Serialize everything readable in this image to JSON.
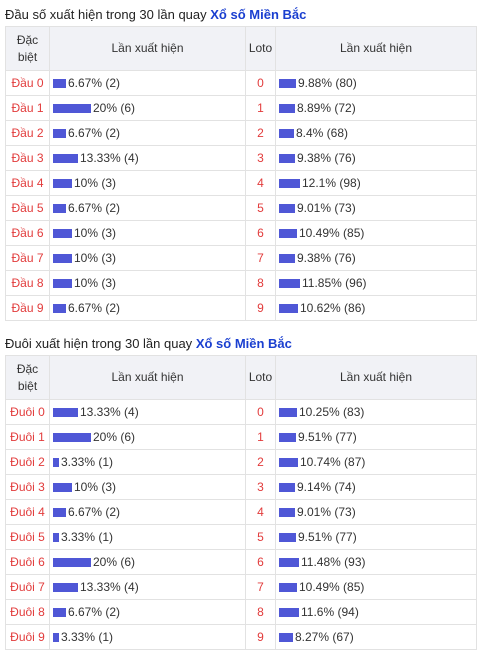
{
  "dau": {
    "title_prefix": "Đầu số xuất hiện trong 30 lần quay",
    "title_link": "Xổ số Miền Bắc",
    "headers": {
      "col1": "Đặc biệt",
      "col2": "Lần xuất hiện",
      "col3": "Loto",
      "col4": "Lần xuất hiện"
    },
    "rows": [
      {
        "label": "Đầu 0",
        "db_text": "6.67% (2)",
        "db_pct": 6.67,
        "loto": "0",
        "loto_text": "9.88% (80)",
        "loto_pct": 9.88
      },
      {
        "label": "Đầu 1",
        "db_text": "20% (6)",
        "db_pct": 20,
        "loto": "1",
        "loto_text": "8.89% (72)",
        "loto_pct": 8.89
      },
      {
        "label": "Đầu 2",
        "db_text": "6.67% (2)",
        "db_pct": 6.67,
        "loto": "2",
        "loto_text": "8.4% (68)",
        "loto_pct": 8.4
      },
      {
        "label": "Đầu 3",
        "db_text": "13.33% (4)",
        "db_pct": 13.33,
        "loto": "3",
        "loto_text": "9.38% (76)",
        "loto_pct": 9.38
      },
      {
        "label": "Đầu 4",
        "db_text": "10% (3)",
        "db_pct": 10,
        "loto": "4",
        "loto_text": "12.1% (98)",
        "loto_pct": 12.1
      },
      {
        "label": "Đầu 5",
        "db_text": "6.67% (2)",
        "db_pct": 6.67,
        "loto": "5",
        "loto_text": "9.01% (73)",
        "loto_pct": 9.01
      },
      {
        "label": "Đầu 6",
        "db_text": "10% (3)",
        "db_pct": 10,
        "loto": "6",
        "loto_text": "10.49% (85)",
        "loto_pct": 10.49
      },
      {
        "label": "Đầu 7",
        "db_text": "10% (3)",
        "db_pct": 10,
        "loto": "7",
        "loto_text": "9.38% (76)",
        "loto_pct": 9.38
      },
      {
        "label": "Đầu 8",
        "db_text": "10% (3)",
        "db_pct": 10,
        "loto": "8",
        "loto_text": "11.85% (96)",
        "loto_pct": 11.85
      },
      {
        "label": "Đầu 9",
        "db_text": "6.67% (2)",
        "db_pct": 6.67,
        "loto": "9",
        "loto_text": "10.62% (86)",
        "loto_pct": 10.62
      }
    ]
  },
  "duoi": {
    "title_prefix": "Đuôi xuất hiện trong 30 lần quay",
    "title_link": "Xổ số Miền Bắc",
    "headers": {
      "col1": "Đặc biệt",
      "col2": "Lần xuất hiện",
      "col3": "Loto",
      "col4": "Lần xuất hiện"
    },
    "rows": [
      {
        "label": "Đuôi 0",
        "db_text": "13.33% (4)",
        "db_pct": 13.33,
        "loto": "0",
        "loto_text": "10.25% (83)",
        "loto_pct": 10.25
      },
      {
        "label": "Đuôi 1",
        "db_text": "20% (6)",
        "db_pct": 20,
        "loto": "1",
        "loto_text": "9.51% (77)",
        "loto_pct": 9.51
      },
      {
        "label": "Đuôi 2",
        "db_text": "3.33% (1)",
        "db_pct": 3.33,
        "loto": "2",
        "loto_text": "10.74% (87)",
        "loto_pct": 10.74
      },
      {
        "label": "Đuôi 3",
        "db_text": "10% (3)",
        "db_pct": 10,
        "loto": "3",
        "loto_text": "9.14% (74)",
        "loto_pct": 9.14
      },
      {
        "label": "Đuôi 4",
        "db_text": "6.67% (2)",
        "db_pct": 6.67,
        "loto": "4",
        "loto_text": "9.01% (73)",
        "loto_pct": 9.01
      },
      {
        "label": "Đuôi 5",
        "db_text": "3.33% (1)",
        "db_pct": 3.33,
        "loto": "5",
        "loto_text": "9.51% (77)",
        "loto_pct": 9.51
      },
      {
        "label": "Đuôi 6",
        "db_text": "20% (6)",
        "db_pct": 20,
        "loto": "6",
        "loto_text": "11.48% (93)",
        "loto_pct": 11.48
      },
      {
        "label": "Đuôi 7",
        "db_text": "13.33% (4)",
        "db_pct": 13.33,
        "loto": "7",
        "loto_text": "10.49% (85)",
        "loto_pct": 10.49
      },
      {
        "label": "Đuôi 8",
        "db_text": "6.67% (2)",
        "db_pct": 6.67,
        "loto": "8",
        "loto_text": "11.6% (94)",
        "loto_pct": 11.6
      },
      {
        "label": "Đuôi 9",
        "db_text": "3.33% (1)",
        "db_pct": 3.33,
        "loto": "9",
        "loto_text": "8.27% (67)",
        "loto_pct": 8.27
      }
    ]
  },
  "colors": {
    "bar": "#4f57d6",
    "label_red": "#e23b3b",
    "link_blue": "#1a3fd0",
    "header_bg": "#f1f2f6"
  }
}
